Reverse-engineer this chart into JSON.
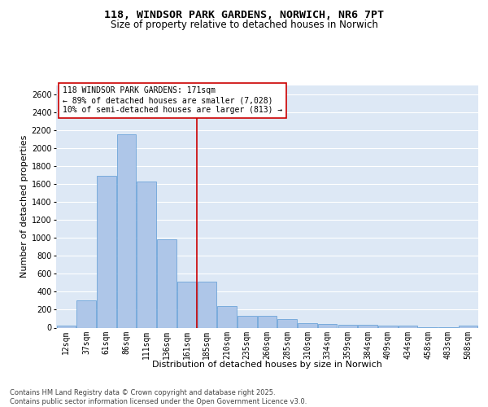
{
  "title": "118, WINDSOR PARK GARDENS, NORWICH, NR6 7PT",
  "subtitle": "Size of property relative to detached houses in Norwich",
  "xlabel": "Distribution of detached houses by size in Norwich",
  "ylabel": "Number of detached properties",
  "footer_line1": "Contains HM Land Registry data © Crown copyright and database right 2025.",
  "footer_line2": "Contains public sector information licensed under the Open Government Licence v3.0.",
  "annotation_line1": "118 WINDSOR PARK GARDENS: 171sqm",
  "annotation_line2": "← 89% of detached houses are smaller (7,028)",
  "annotation_line3": "10% of semi-detached houses are larger (813) →",
  "categories": [
    "12sqm",
    "37sqm",
    "61sqm",
    "86sqm",
    "111sqm",
    "136sqm",
    "161sqm",
    "185sqm",
    "210sqm",
    "235sqm",
    "260sqm",
    "285sqm",
    "310sqm",
    "334sqm",
    "359sqm",
    "384sqm",
    "409sqm",
    "434sqm",
    "458sqm",
    "483sqm",
    "508sqm"
  ],
  "values": [
    25,
    300,
    1690,
    2160,
    1630,
    985,
    510,
    510,
    245,
    130,
    130,
    95,
    50,
    40,
    35,
    35,
    22,
    22,
    8,
    8,
    22
  ],
  "bar_color": "#aec6e8",
  "bar_edge_color": "#5b9bd5",
  "vline_color": "#cc0000",
  "vline_position": 6.5,
  "ylim": [
    0,
    2700
  ],
  "yticks": [
    0,
    200,
    400,
    600,
    800,
    1000,
    1200,
    1400,
    1600,
    1800,
    2000,
    2200,
    2400,
    2600
  ],
  "background_color": "#ffffff",
  "plot_bg_color": "#dde8f5",
  "grid_color": "#ffffff",
  "annotation_box_color": "#ffffff",
  "annotation_box_edge": "#cc0000",
  "title_fontsize": 9.5,
  "subtitle_fontsize": 8.5,
  "axis_label_fontsize": 8,
  "tick_fontsize": 7,
  "annotation_fontsize": 7,
  "footer_fontsize": 6
}
